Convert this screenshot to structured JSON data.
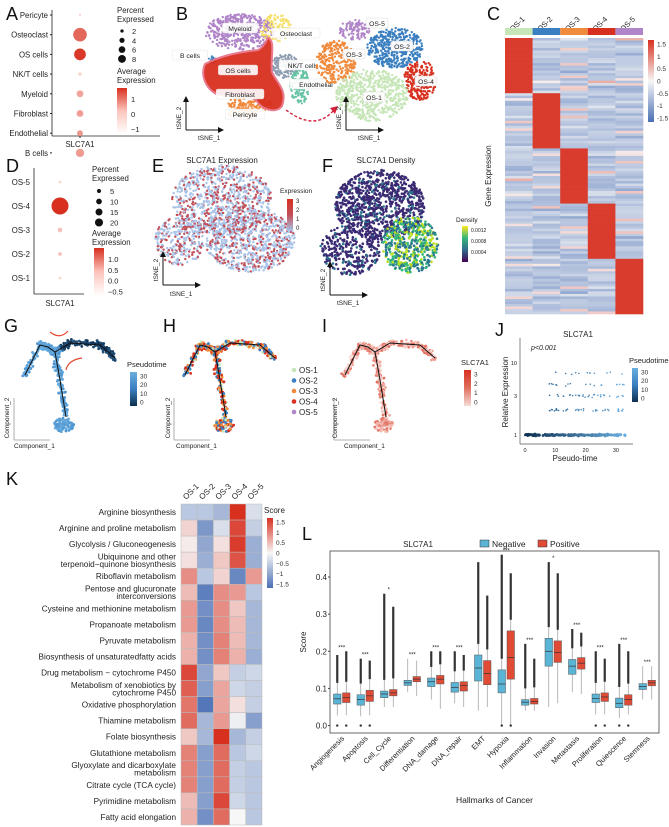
{
  "figure": {
    "panels": [
      "A",
      "B",
      "C",
      "D",
      "E",
      "F",
      "G",
      "H",
      "I",
      "J",
      "K",
      "L"
    ]
  },
  "chart_data": [
    {
      "id": "A",
      "type": "scatter",
      "subtype": "dotplot",
      "categories_y": [
        "Pericyte",
        "Osteoclast",
        "OS cells",
        "NK/T cells",
        "Myeloid",
        "Fibroblast",
        "Endothelial",
        "B cells"
      ],
      "categories_x": [
        "SLC7A1"
      ],
      "percent_expressed": [
        0.2,
        8,
        6,
        0.5,
        2,
        2,
        1.5,
        3
      ],
      "average_expression": [
        -1.5,
        0.8,
        1.8,
        -1.5,
        -0.5,
        -0.4,
        -0.2,
        -0.3
      ],
      "legend_size_title": "Percent\nExpressed",
      "legend_size_values": [
        2,
        4,
        6,
        8
      ],
      "legend_color_title": "Average\nExpression",
      "legend_color_ticks": [
        1,
        0,
        -1
      ],
      "xlabel": "SLC7A1"
    },
    {
      "id": "B",
      "type": "scatter",
      "subtype": "tsne",
      "clusters_left": [
        "Myeloid",
        "Osteoclast",
        "B cells",
        "OS cells",
        "NK/T cells",
        "Endothelial",
        "Fibroblast",
        "Pericyte"
      ],
      "clusters_right": [
        "OS-5",
        "OS-3",
        "OS-2",
        "OS-4",
        "OS-1"
      ],
      "xlabel": "tSNE_1",
      "ylabel": "tSNE_2",
      "colors": {
        "Myeloid": "#b084c8",
        "Osteoclast": "#f5e06a",
        "B cells": "#3a7fc0",
        "OS cells": "#d7301f",
        "NK/T cells": "#8c9cb0",
        "Endothelial": "#66c2a5",
        "Fibroblast": "#f08a3c",
        "Pericyte": "#f3a25a",
        "OS-1": "#c7e6b8",
        "OS-2": "#3a7fc0",
        "OS-3": "#f08a3c",
        "OS-4": "#d7301f",
        "OS-5": "#b084c8"
      }
    },
    {
      "id": "C",
      "type": "heatmap",
      "columns": [
        "OS-1",
        "OS-2",
        "OS-3",
        "OS-4",
        "OS-5"
      ],
      "ylabel": "Gene Expression",
      "legend_ticks": [
        1.5,
        1,
        0.5,
        0,
        -0.5,
        -1,
        -1.5
      ],
      "block_structure": "diagonal high expression per cluster"
    },
    {
      "id": "D",
      "type": "scatter",
      "subtype": "dotplot",
      "categories_y": [
        "OS-5",
        "OS-4",
        "OS-3",
        "OS-2",
        "OS-1"
      ],
      "categories_x": [
        "SLC7A1"
      ],
      "percent_expressed": [
        0.5,
        20,
        1.5,
        1,
        0.5
      ],
      "average_expression": [
        -0.5,
        1.2,
        -0.3,
        -0.3,
        -0.5
      ],
      "legend_size_title": "Percent\nExpressed",
      "legend_size_values": [
        5,
        10,
        15,
        20
      ],
      "legend_color_title": "Average\nExpression",
      "legend_color_ticks": [
        1.0,
        0.5,
        0.0,
        -0.5
      ],
      "xlabel": "SLC7A1"
    },
    {
      "id": "E",
      "type": "scatter",
      "subtype": "tsne-feature",
      "title": "SLC7A1 Expression",
      "legend_title": "Expression",
      "legend_ticks": [
        3,
        2,
        1,
        0
      ],
      "xlabel": "tSNE_1",
      "ylabel": "tSNE_2"
    },
    {
      "id": "F",
      "type": "scatter",
      "subtype": "tsne-density",
      "title": "SLC7A1 Density",
      "legend_title": "Density",
      "legend_ticks": [
        "0.0012",
        "0.0008",
        "0.0004"
      ],
      "xlabel": "tSNE_1",
      "ylabel": "tSNE_2"
    },
    {
      "id": "G",
      "type": "scatter",
      "subtype": "trajectory",
      "legend_title": "Pseudotime",
      "legend_ticks": [
        30,
        20,
        10,
        0
      ],
      "xlabel": "Component_1",
      "ylabel": "Component_2"
    },
    {
      "id": "H",
      "type": "scatter",
      "subtype": "trajectory",
      "legend_entries": [
        "OS-1",
        "OS-2",
        "OS-3",
        "OS-4",
        "OS-5"
      ],
      "legend_colors": [
        "#c7e6b8",
        "#3a7fc0",
        "#f08a3c",
        "#d7301f",
        "#b084c8"
      ],
      "xlabel": "Component_1",
      "ylabel": "Component_2"
    },
    {
      "id": "I",
      "type": "scatter",
      "subtype": "trajectory",
      "legend_title": "SLC7A1",
      "legend_ticks": [
        3,
        2,
        1,
        0
      ],
      "xlabel": "Component_1",
      "ylabel": "Component_2"
    },
    {
      "id": "J",
      "type": "scatter",
      "title": "SLC7A1",
      "annotation": "p<0.001",
      "xlabel": "Pseudo-time",
      "ylabel": "Relative Expression",
      "x_ticks": [
        0,
        10,
        20,
        30
      ],
      "y_ticks": [
        1,
        3,
        10
      ],
      "xlim": [
        0,
        34
      ],
      "legend_title": "Pseudotime",
      "legend_ticks": [
        30,
        20,
        10,
        0
      ]
    },
    {
      "id": "K",
      "type": "heatmap",
      "columns": [
        "OS-1",
        "OS-2",
        "OS-3",
        "OS-4",
        "OS-5"
      ],
      "rows": [
        "Arginine biosynthesis",
        "Arginine and proline metabolism",
        "Glycolysis / Gluconeogenesis",
        "Ubiquinone and other\nterpenoid−quinone biosynthesis",
        "Riboflavin metabolism",
        "Pentose and glucuronate\ninterconversions",
        "Cysteine and methionine metabolism",
        "Propanoate metabolism",
        "Pyruvate metabolism",
        "Biosynthesis of unsaturatedfatty acids",
        "Drug metabolism − cytochrome P450",
        "Metabolism of xenobiotics by\ncytochrome P450",
        "Oxidative phosphorylation",
        "Thiamine metabolism",
        "Folate biosynthesis",
        "Glutathione metabolism",
        "Glyoxylate and dicarboxylate\nmetabolism",
        "Citrate cycle (TCA cycle)",
        "Pyrimidine metabolism",
        "Fatty acid elongation"
      ],
      "values": [
        [
          -0.6,
          -0.6,
          -0.8,
          1.7,
          -0.3
        ],
        [
          0.3,
          -1.2,
          -0.3,
          1.5,
          -0.5
        ],
        [
          0.1,
          -1.0,
          0.2,
          1.6,
          -0.9
        ],
        [
          0.2,
          -0.9,
          0.4,
          1.4,
          -0.9
        ],
        [
          0.9,
          -0.6,
          0.3,
          -1.4,
          0.8
        ],
        [
          0.5,
          -1.5,
          0.9,
          0.8,
          -0.6
        ],
        [
          0.8,
          -1.3,
          0.9,
          0.4,
          -0.8
        ],
        [
          0.8,
          -1.4,
          0.9,
          0.5,
          -0.8
        ],
        [
          0.6,
          -1.3,
          1.0,
          0.5,
          -0.8
        ],
        [
          0.6,
          -1.3,
          1.0,
          0.6,
          -0.9
        ],
        [
          1.5,
          -1.0,
          0.4,
          -0.5,
          -0.4
        ],
        [
          1.3,
          -1.1,
          0.7,
          -0.4,
          -0.5
        ],
        [
          1.1,
          -1.6,
          0.7,
          0.2,
          -0.5
        ],
        [
          1.2,
          -0.8,
          0.8,
          -0.1,
          -1.1
        ],
        [
          0.4,
          -0.8,
          1.7,
          -0.8,
          -0.5
        ],
        [
          1.0,
          -1.1,
          1.2,
          -0.6,
          -0.4
        ],
        [
          1.0,
          -1.1,
          1.2,
          -0.5,
          -0.6
        ],
        [
          1.0,
          -1.1,
          1.2,
          -0.5,
          -0.6
        ],
        [
          0.5,
          -1.1,
          1.5,
          -0.4,
          -0.6
        ],
        [
          0.6,
          -1.3,
          1.2,
          0.0,
          -0.6
        ]
      ],
      "legend_title": "Score",
      "legend_ticks": [
        1.5,
        1,
        0.5,
        0,
        -0.5,
        -1,
        -1.5
      ],
      "range": [
        -1.7,
        1.7
      ]
    },
    {
      "id": "L",
      "type": "bar",
      "subtype": "boxplot",
      "title": "SLC7A1",
      "legend": [
        "Negative",
        "Positive"
      ],
      "colors": {
        "Negative": "#5ab4d6",
        "Positive": "#e04b36"
      },
      "xlabel": "Hallmarks of Cancer",
      "ylabel": "Score",
      "ylim": [
        -0.02,
        0.47
      ],
      "y_ticks": [
        0.0,
        0.1,
        0.2,
        0.3,
        0.4
      ],
      "categories": [
        "Angiogenesis",
        "Apoptosis",
        "Cell_Cycle",
        "Differentiation",
        "DNA_damage",
        "DNA_repair",
        "EMT",
        "Hypoxia",
        "Inflammation",
        "Invasion",
        "Metastasis",
        "Proliferation",
        "Quiescence",
        "Stemness"
      ],
      "significance": [
        "***",
        "***",
        "*",
        "***",
        "***",
        "***",
        "",
        "***",
        "***",
        "*",
        "***",
        "***",
        "***",
        "***"
      ],
      "series": [
        {
          "name": "Negative",
          "q1": [
            0.058,
            0.055,
            0.075,
            0.108,
            0.105,
            0.09,
            0.12,
            0.088,
            0.055,
            0.16,
            0.138,
            0.062,
            0.048,
            0.097
          ],
          "median": [
            0.072,
            0.07,
            0.085,
            0.115,
            0.118,
            0.103,
            0.155,
            0.112,
            0.063,
            0.2,
            0.16,
            0.073,
            0.06,
            0.105
          ],
          "q3": [
            0.085,
            0.083,
            0.093,
            0.122,
            0.128,
            0.116,
            0.19,
            0.15,
            0.07,
            0.235,
            0.178,
            0.085,
            0.074,
            0.113
          ],
          "wmin": [
            0.027,
            0.025,
            0.05,
            0.09,
            0.07,
            0.06,
            0.04,
            0.0,
            0.04,
            0.05,
            0.09,
            0.03,
            0.02,
            0.07
          ],
          "wmax": [
            0.19,
            0.18,
            0.355,
            0.18,
            0.2,
            0.2,
            0.44,
            0.46,
            0.22,
            0.44,
            0.26,
            0.2,
            0.22,
            0.16
          ]
        },
        {
          "name": "Positive",
          "q1": [
            0.062,
            0.065,
            0.08,
            0.118,
            0.112,
            0.093,
            0.11,
            0.125,
            0.058,
            0.17,
            0.152,
            0.065,
            0.055,
            0.107
          ],
          "median": [
            0.075,
            0.08,
            0.088,
            0.125,
            0.125,
            0.108,
            0.14,
            0.183,
            0.065,
            0.197,
            0.168,
            0.077,
            0.07,
            0.115
          ],
          "q3": [
            0.088,
            0.095,
            0.097,
            0.132,
            0.135,
            0.118,
            0.175,
            0.255,
            0.073,
            0.228,
            0.183,
            0.088,
            0.083,
            0.122
          ],
          "wmin": [
            0.028,
            0.028,
            0.05,
            0.08,
            0.045,
            0.05,
            0.05,
            0.0,
            0.04,
            0.06,
            0.085,
            0.03,
            0.03,
            0.07
          ],
          "wmax": [
            0.2,
            0.175,
            0.32,
            0.175,
            0.2,
            0.19,
            0.35,
            0.41,
            0.18,
            0.41,
            0.25,
            0.18,
            0.2,
            0.16
          ]
        }
      ]
    }
  ]
}
